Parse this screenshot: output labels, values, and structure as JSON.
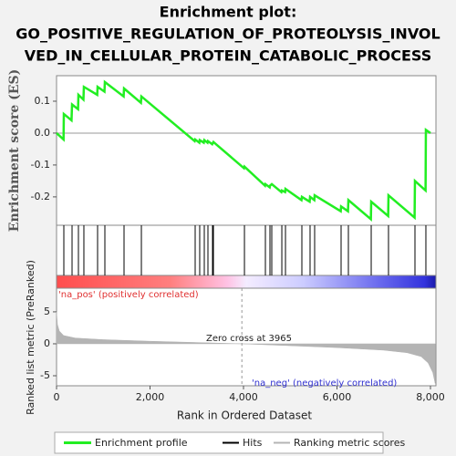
{
  "chart_data": {
    "type": "enrichment",
    "title": [
      "Enrichment plot:",
      "GO_POSITIVE_REGULATION_OF_PROTEOLYSIS_INVOL",
      "VED_IN_CELLULAR_PROTEIN_CATABOLIC_PROCESS"
    ],
    "ylabel": "Enrichment score (ES)",
    "y2label": "Ranked list metric (PreRanked)",
    "xlabel": "Rank in Ordered Dataset",
    "pos_label": "'na_pos' (positively correlated)",
    "neg_label": "'na_neg' (negatively correlated)",
    "zero_cross": 3965,
    "zero_cross_label": "Zero cross at 3965",
    "xlim": [
      0,
      8117
    ],
    "xticks": [
      0,
      {
        "value": 2000,
        "label": "2,000"
      },
      {
        "value": 4000,
        "label": "4,000"
      },
      {
        "value": 6000,
        "label": "6,000"
      },
      {
        "value": 8000,
        "label": "8,000"
      }
    ],
    "ylim": [
      -0.289,
      0.18
    ],
    "yticks": [
      0.1,
      {
        "value": 0,
        "label": "0.0"
      },
      -0.1,
      -0.2
    ],
    "y2lim": [
      -6.57,
      8.7
    ],
    "y2ticks": [
      5,
      0,
      -5
    ],
    "series": [
      {
        "name": "Enrichment profile",
        "color": "#22ee22",
        "x": [
          0,
          150,
          156,
          320,
          332,
          460,
          468,
          575,
          585,
          870,
          878,
          1025,
          1034,
          1435,
          1444,
          1805,
          1815,
          2955,
          2966,
          3055,
          3063,
          3150,
          3161,
          3230,
          3239,
          3330,
          3356,
          4010,
          4020,
          4460,
          4468,
          4560,
          4566,
          4605,
          4810,
          4820,
          4890,
          4898,
          5240,
          5249,
          5415,
          5424,
          5515,
          5522,
          6080,
          6088,
          6235,
          6244,
          6725,
          6732,
          7095,
          7102,
          7660,
          7668,
          7895,
          7902,
          8000
        ],
        "values": [
          0,
          -0.02,
          0.06,
          0.04,
          0.09,
          0.075,
          0.12,
          0.105,
          0.145,
          0.12,
          0.145,
          0.13,
          0.16,
          0.115,
          0.14,
          0.095,
          0.115,
          -0.025,
          -0.02,
          -0.03,
          -0.022,
          -0.03,
          -0.022,
          -0.03,
          -0.025,
          -0.035,
          -0.028,
          -0.11,
          -0.105,
          -0.165,
          -0.16,
          -0.17,
          -0.165,
          -0.16,
          -0.185,
          -0.18,
          -0.185,
          -0.175,
          -0.21,
          -0.2,
          -0.215,
          -0.2,
          -0.21,
          -0.195,
          -0.245,
          -0.23,
          -0.245,
          -0.21,
          -0.27,
          -0.215,
          -0.26,
          -0.195,
          -0.265,
          -0.15,
          -0.18,
          0.01,
          0
        ]
      },
      {
        "name": "Hits",
        "color": "#000000",
        "x": [
          156,
          332,
          468,
          585,
          878,
          1034,
          1444,
          1815,
          2966,
          3063,
          3161,
          3239,
          3337,
          3356,
          4020,
          4468,
          4566,
          4605,
          4820,
          4898,
          5249,
          5424,
          5522,
          6088,
          6244,
          6732,
          7102,
          7668,
          7902
        ]
      },
      {
        "name": "Ranking metric scores",
        "color": "#b4b4b4",
        "axis": "y2",
        "x": [
          0,
          20,
          60,
          150,
          400,
          1000,
          2000,
          3000,
          3965,
          5000,
          6000,
          7000,
          7500,
          7800,
          7950,
          8050,
          8100
        ],
        "values": [
          5,
          3,
          2,
          1.3,
          0.9,
          0.65,
          0.4,
          0.2,
          0,
          -0.3,
          -0.6,
          -1.0,
          -1.4,
          -2.0,
          -3,
          -4.5,
          -6.2
        ]
      }
    ]
  }
}
